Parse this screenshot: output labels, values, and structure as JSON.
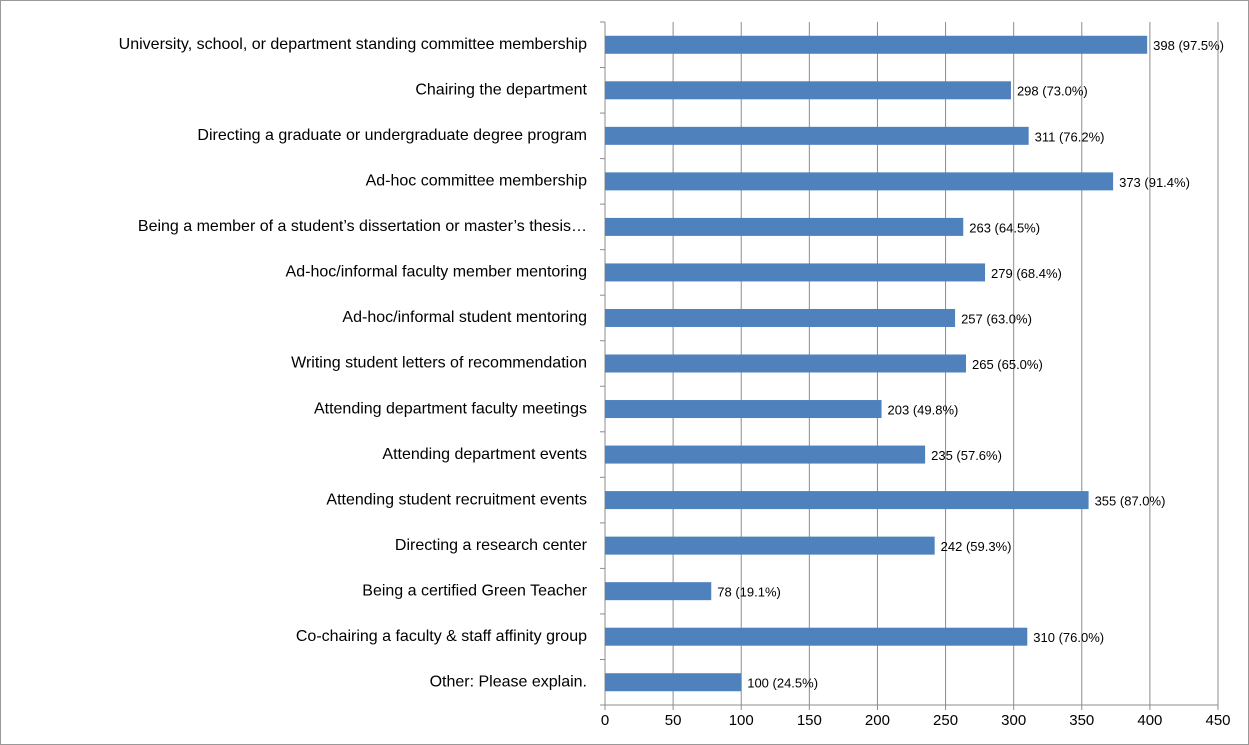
{
  "chart_data": {
    "type": "bar",
    "orientation": "horizontal",
    "categories": [
      "University, school, or department standing committee membership",
      "Chairing the department",
      "Directing a graduate or undergraduate degree program",
      "Ad-hoc committee membership",
      "Being a member of a student’s dissertation or master’s thesis…",
      "Ad-hoc/informal faculty member mentoring",
      "Ad-hoc/informal student mentoring",
      "Writing student letters of recommendation",
      "Attending department faculty meetings",
      "Attending department events",
      "Attending student recruitment events",
      "Directing a research center",
      "Being a certified Green Teacher",
      "Co-chairing a faculty & staff affinity group",
      "Other: Please explain."
    ],
    "values": [
      398,
      298,
      311,
      373,
      263,
      279,
      257,
      265,
      203,
      235,
      355,
      242,
      78,
      310,
      100
    ],
    "value_labels": [
      "398 (97.5%)",
      "298 (73.0%)",
      "311 (76.2%)",
      "373 (91.4%)",
      "263 (64.5%)",
      "279 (68.4%)",
      "257 (63.0%)",
      "265 (65.0%)",
      "203 (49.8%)",
      "235 (57.6%)",
      "355 (87.0%)",
      "242 (59.3%)",
      "78 (19.1%)",
      "310 (76.0%)",
      "100 (24.5%)"
    ],
    "color": "#4f81bd",
    "xlim": [
      0,
      450
    ],
    "xticks": [
      0,
      50,
      100,
      150,
      200,
      250,
      300,
      350,
      400,
      450
    ],
    "grid": true
  }
}
